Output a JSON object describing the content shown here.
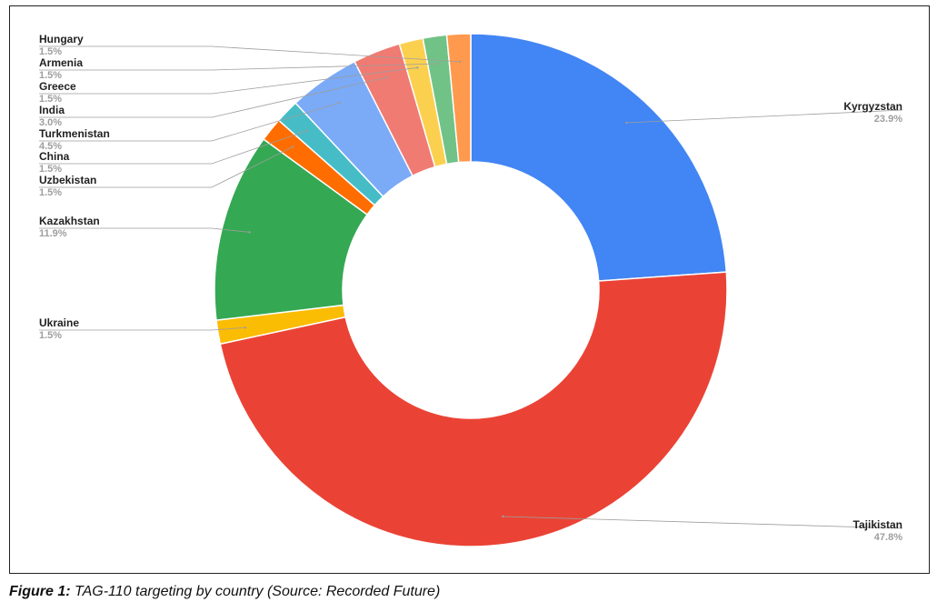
{
  "chart_data": {
    "type": "pie",
    "style": "donut",
    "title": "",
    "slices": [
      {
        "label": "Kyrgyzstan",
        "value": 23.9,
        "value_label": "23.9%",
        "color": "#4285F4"
      },
      {
        "label": "Tajikistan",
        "value": 47.8,
        "value_label": "47.8%",
        "color": "#EA4335"
      },
      {
        "label": "Ukraine",
        "value": 1.5,
        "value_label": "1.5%",
        "color": "#FBBC04"
      },
      {
        "label": "Kazakhstan",
        "value": 11.9,
        "value_label": "11.9%",
        "color": "#34A853"
      },
      {
        "label": "Uzbekistan",
        "value": 1.5,
        "value_label": "1.5%",
        "color": "#FF6D01"
      },
      {
        "label": "China",
        "value": 1.5,
        "value_label": "1.5%",
        "color": "#46BDC6"
      },
      {
        "label": "Turkmenistan",
        "value": 4.5,
        "value_label": "4.5%",
        "color": "#7BAAF7"
      },
      {
        "label": "India",
        "value": 3.0,
        "value_label": "3.0%",
        "color": "#F07B72"
      },
      {
        "label": "Greece",
        "value": 1.5,
        "value_label": "1.5%",
        "color": "#FCD04F"
      },
      {
        "label": "Armenia",
        "value": 1.5,
        "value_label": "1.5%",
        "color": "#71C287"
      },
      {
        "label": "Hungary",
        "value": 1.5,
        "value_label": "1.5%",
        "color": "#FF994D"
      }
    ],
    "legend": "none",
    "label_placement": "callout lines to left and right"
  },
  "caption": {
    "prefix": "Figure 1:",
    "text": " TAG-110 targeting by country (Source: Recorded Future)"
  }
}
